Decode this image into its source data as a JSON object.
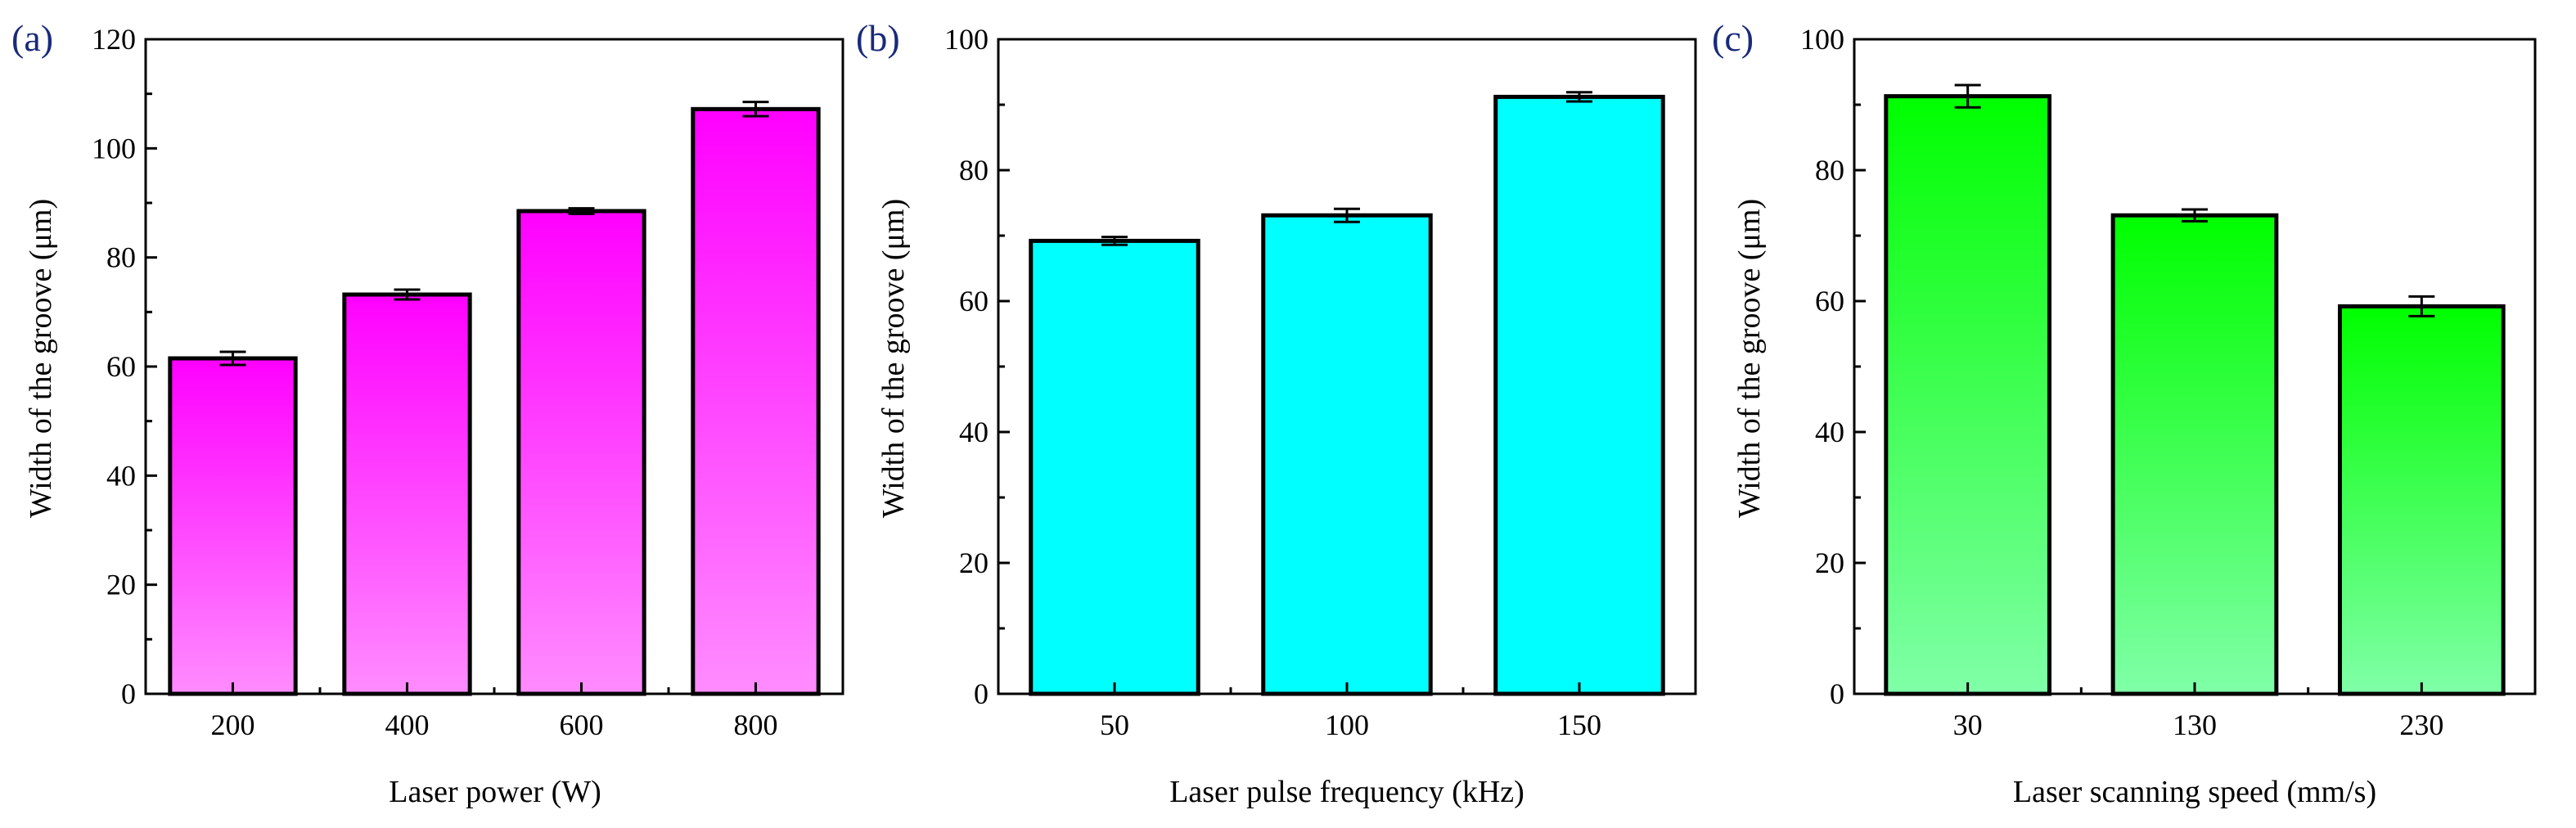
{
  "chart_data": [
    {
      "type": "bar",
      "panel_label": "(a)",
      "title": "",
      "xlabel": "Laser power (W)",
      "ylabel": "Width of the groove (μm)",
      "categories": [
        "200",
        "400",
        "600",
        "800"
      ],
      "values": [
        61.5,
        73.2,
        88.5,
        107.2
      ],
      "errors": [
        1.2,
        0.9,
        0.5,
        1.3
      ],
      "ylim": [
        0,
        120
      ],
      "yticks": [
        0,
        20,
        40,
        60,
        80,
        100,
        120
      ],
      "ytick_labels": [
        "0",
        "20",
        "40",
        "60",
        "80",
        "100",
        "120"
      ],
      "grid": false,
      "colors": {
        "top": "#ff00ff",
        "bottom": "#ff8cff",
        "edge": "#000000"
      }
    },
    {
      "type": "bar",
      "panel_label": "(b)",
      "title": "",
      "xlabel": "Laser pulse frequency (kHz)",
      "ylabel": "Width of the groove (μm)",
      "categories": [
        "50",
        "100",
        "150"
      ],
      "values": [
        69.2,
        73.1,
        91.2
      ],
      "errors": [
        0.6,
        1.0,
        0.7
      ],
      "ylim": [
        0,
        100
      ],
      "yticks": [
        0,
        20,
        40,
        60,
        80,
        100
      ],
      "ytick_labels": [
        "0",
        "20",
        "40",
        "60",
        "80",
        "100"
      ],
      "grid": false,
      "colors": {
        "top": "#00ffff",
        "bottom": "#00ffff",
        "edge": "#000000"
      }
    },
    {
      "type": "bar",
      "panel_label": "(c)",
      "title": "",
      "xlabel": "Laser scanning speed (mm/s)",
      "ylabel": "Width of the groove (μm)",
      "categories": [
        "30",
        "130",
        "230"
      ],
      "values": [
        91.3,
        73.1,
        59.2
      ],
      "errors": [
        1.7,
        0.9,
        1.5
      ],
      "ylim": [
        0,
        100
      ],
      "yticks": [
        0,
        20,
        40,
        60,
        80,
        100
      ],
      "ytick_labels": [
        "0",
        "20",
        "40",
        "60",
        "80",
        "100"
      ],
      "grid": false,
      "colors": {
        "top": "#00ff00",
        "bottom": "#80ffa8",
        "edge": "#000000"
      }
    }
  ]
}
